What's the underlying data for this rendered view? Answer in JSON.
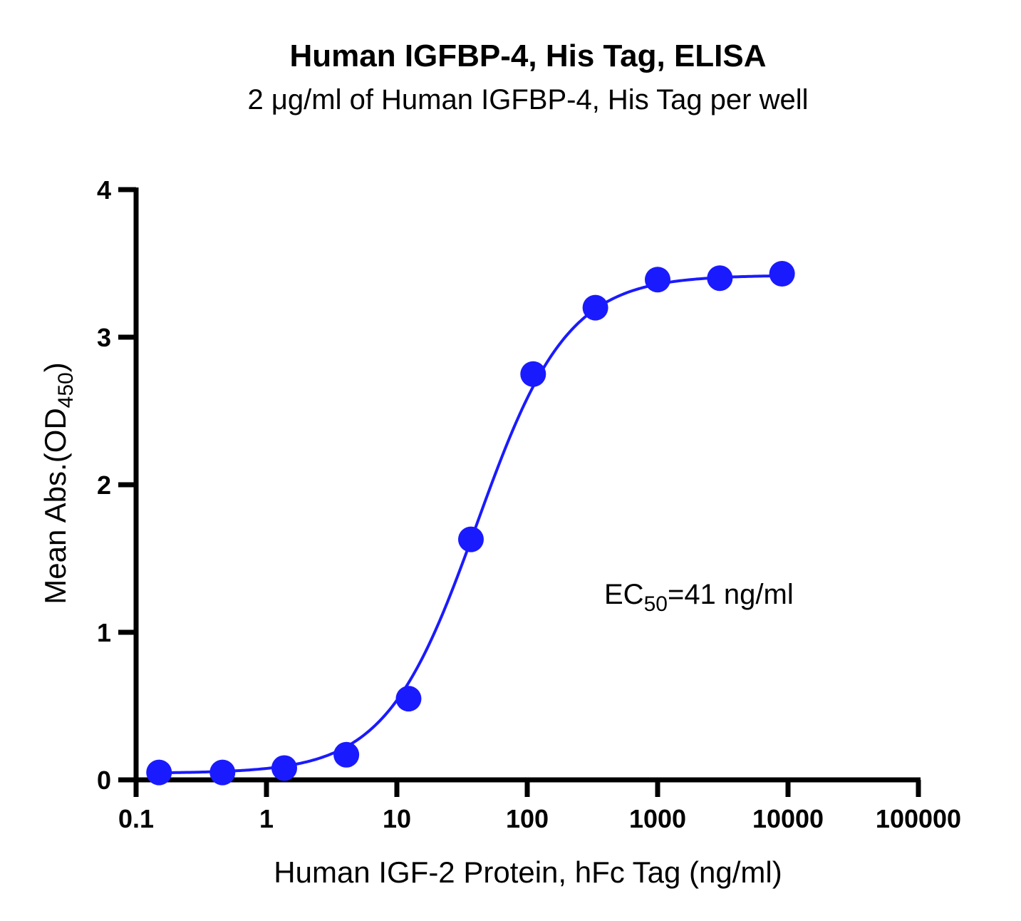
{
  "chart_data": {
    "type": "scatter",
    "title": "Human IGFBP-4, His Tag, ELISA",
    "subtitle": "2 μg/ml of Human IGFBP-4, His Tag per well",
    "xlabel": "Human IGF-2 Protein, hFc Tag (ng/ml)",
    "ylabel_main": "Mean Abs.(OD",
    "ylabel_sub": "450",
    "ylabel_close": ")",
    "x_scale": "log",
    "xlim": [
      0.1,
      100000
    ],
    "ylim": [
      0,
      4
    ],
    "x_ticks": [
      0.1,
      1,
      10,
      100,
      1000,
      10000,
      100000
    ],
    "x_tick_labels": [
      "0.1",
      "1",
      "10",
      "100",
      "1000",
      "10000",
      "100000"
    ],
    "y_ticks": [
      0,
      1,
      2,
      3,
      4
    ],
    "y_tick_labels": [
      "0",
      "1",
      "2",
      "3",
      "4"
    ],
    "grid": false,
    "series_color": "#1a1aff",
    "points": {
      "x": [
        0.15,
        0.46,
        1.37,
        4.1,
        12.3,
        37.0,
        111,
        333,
        1000,
        3000,
        9000
      ],
      "y": [
        0.05,
        0.05,
        0.08,
        0.17,
        0.55,
        1.63,
        2.75,
        3.2,
        3.39,
        3.4,
        3.43
      ]
    },
    "fit": {
      "model": "4PL",
      "bottom": 0.045,
      "top": 3.42,
      "ec50": 41,
      "hill": 1.25,
      "x_range": [
        0.15,
        9000
      ]
    },
    "annotation": {
      "prefix": "EC",
      "sub": "50",
      "suffix": "=41 ng/ml"
    }
  }
}
